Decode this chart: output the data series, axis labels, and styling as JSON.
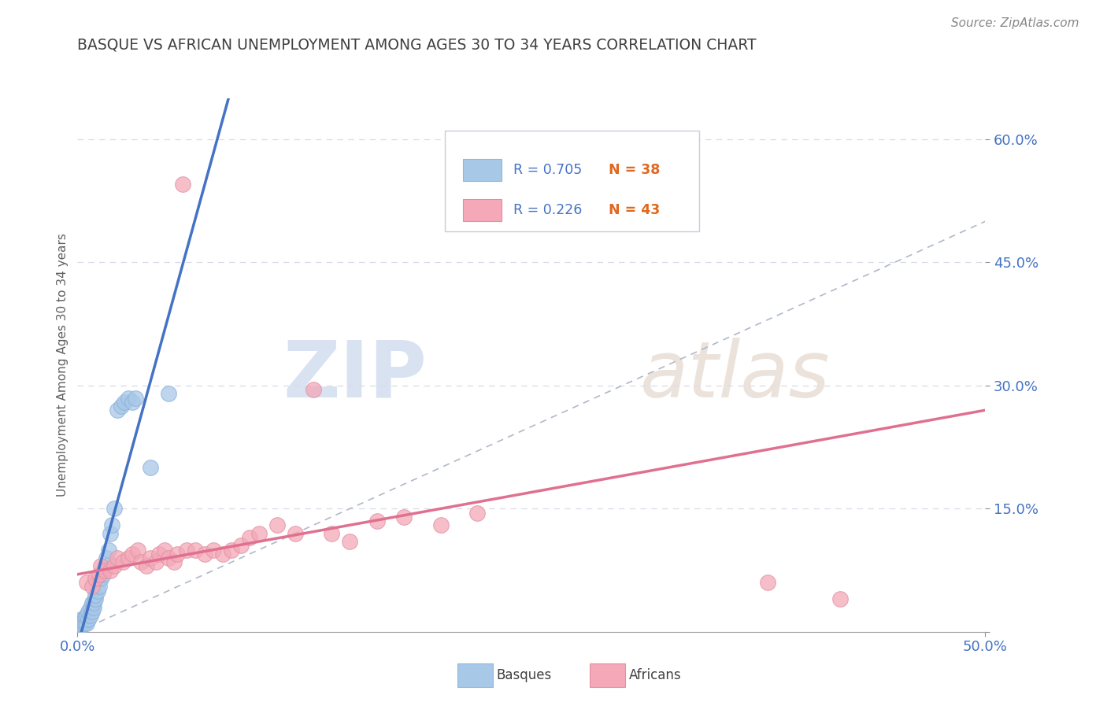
{
  "title": "BASQUE VS AFRICAN UNEMPLOYMENT AMONG AGES 30 TO 34 YEARS CORRELATION CHART",
  "source": "Source: ZipAtlas.com",
  "ylabel": "Unemployment Among Ages 30 to 34 years",
  "xlim": [
    0.0,
    0.5
  ],
  "ylim": [
    0.0,
    0.65
  ],
  "yticks": [
    0.0,
    0.15,
    0.3,
    0.45,
    0.6
  ],
  "xticks": [
    0.0,
    0.5
  ],
  "xtick_labels": [
    "0.0%",
    "50.0%"
  ],
  "ytick_labels": [
    "",
    "15.0%",
    "30.0%",
    "45.0%",
    "60.0%"
  ],
  "basque_R": 0.705,
  "basque_N": 38,
  "african_R": 0.226,
  "african_N": 43,
  "basque_color": "#a8c8e8",
  "african_color": "#f4a8b8",
  "basque_line_color": "#4472c4",
  "african_line_color": "#e07090",
  "ref_line_color": "#b0b8c8",
  "title_color": "#404040",
  "axis_label_color": "#606060",
  "tick_color": "#4472c4",
  "legend_r_color": "#4472c4",
  "legend_n_color": "#e06820",
  "basque_x": [
    0.001,
    0.001,
    0.002,
    0.002,
    0.003,
    0.003,
    0.004,
    0.004,
    0.005,
    0.005,
    0.006,
    0.006,
    0.007,
    0.007,
    0.008,
    0.008,
    0.009,
    0.009,
    0.01,
    0.01,
    0.011,
    0.012,
    0.013,
    0.014,
    0.015,
    0.016,
    0.017,
    0.018,
    0.019,
    0.02,
    0.022,
    0.024,
    0.026,
    0.028,
    0.03,
    0.032,
    0.04,
    0.05
  ],
  "basque_y": [
    0.005,
    0.008,
    0.01,
    0.015,
    0.008,
    0.012,
    0.01,
    0.018,
    0.01,
    0.02,
    0.015,
    0.025,
    0.02,
    0.03,
    0.025,
    0.035,
    0.03,
    0.035,
    0.04,
    0.045,
    0.05,
    0.055,
    0.065,
    0.07,
    0.08,
    0.09,
    0.1,
    0.12,
    0.13,
    0.15,
    0.27,
    0.275,
    0.28,
    0.285,
    0.28,
    0.285,
    0.2,
    0.29
  ],
  "african_x": [
    0.005,
    0.008,
    0.01,
    0.012,
    0.013,
    0.015,
    0.018,
    0.02,
    0.022,
    0.025,
    0.028,
    0.03,
    0.033,
    0.035,
    0.038,
    0.04,
    0.043,
    0.045,
    0.048,
    0.05,
    0.053,
    0.055,
    0.058,
    0.06,
    0.065,
    0.07,
    0.075,
    0.08,
    0.085,
    0.09,
    0.095,
    0.1,
    0.11,
    0.12,
    0.13,
    0.14,
    0.15,
    0.165,
    0.18,
    0.2,
    0.22,
    0.38,
    0.42
  ],
  "african_y": [
    0.06,
    0.055,
    0.065,
    0.07,
    0.08,
    0.075,
    0.075,
    0.08,
    0.09,
    0.085,
    0.09,
    0.095,
    0.1,
    0.085,
    0.08,
    0.09,
    0.085,
    0.095,
    0.1,
    0.09,
    0.085,
    0.095,
    0.545,
    0.1,
    0.1,
    0.095,
    0.1,
    0.095,
    0.1,
    0.105,
    0.115,
    0.12,
    0.13,
    0.12,
    0.295,
    0.12,
    0.11,
    0.135,
    0.14,
    0.13,
    0.145,
    0.06,
    0.04
  ],
  "basque_line_x": [
    0.0,
    0.1
  ],
  "basque_line_y_intercept": 0.0,
  "african_line_x_start": 0.0,
  "african_line_x_end": 0.5,
  "african_line_y_start": 0.07,
  "african_line_y_end": 0.27,
  "background_color": "#ffffff",
  "watermark_zip": "ZIP",
  "watermark_atlas": "atlas",
  "grid_color": "#d8dce8",
  "figure_bg": "#ffffff"
}
